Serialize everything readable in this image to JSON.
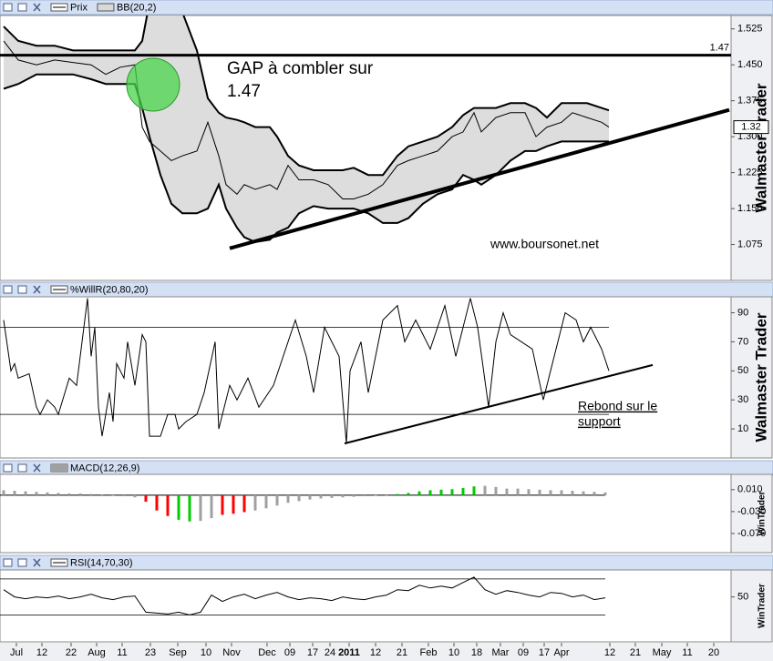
{
  "chart_data": [
    {
      "type": "line",
      "watermark": "Walmaster Trader",
      "xlim": [
        0,
        200.5
      ],
      "ylim": [
        1.0,
        1.553
      ],
      "yticks": [
        1.525,
        {
          "value": 1.45,
          "label": "1.450"
        },
        1.375,
        {
          "value": 1.3,
          "label": "1.300"
        },
        1.225,
        {
          "value": 1.15,
          "label": "1.150"
        },
        1.075
      ],
      "x": [
        1,
        5,
        10,
        15,
        20,
        25,
        29,
        33,
        37,
        39,
        41,
        44,
        47,
        50,
        54,
        57,
        60,
        62,
        65,
        67,
        70,
        74,
        76,
        79,
        82,
        86,
        90,
        94,
        97,
        101,
        105,
        109,
        112,
        116,
        120,
        124,
        127,
        130,
        132,
        136,
        140,
        144,
        147,
        150,
        154,
        157,
        161,
        165,
        167
      ],
      "series": [
        {
          "name": "Prix",
          "color": "#000000",
          "values": [
            1.5,
            1.46,
            1.45,
            1.46,
            1.455,
            1.45,
            1.43,
            1.445,
            1.45,
            1.32,
            1.29,
            1.27,
            1.25,
            1.26,
            1.27,
            1.33,
            1.26,
            1.2,
            1.18,
            1.2,
            1.19,
            1.2,
            1.19,
            1.24,
            1.21,
            1.21,
            1.2,
            1.17,
            1.17,
            1.18,
            1.2,
            1.24,
            1.25,
            1.26,
            1.27,
            1.3,
            1.31,
            1.35,
            1.31,
            1.34,
            1.35,
            1.35,
            1.3,
            1.32,
            1.33,
            1.35,
            1.34,
            1.33,
            1.32
          ]
        },
        {
          "name": "BB(20,2)",
          "color": "#d9d9d9",
          "upper": [
            1.53,
            1.5,
            1.49,
            1.49,
            1.48,
            1.48,
            1.48,
            1.48,
            1.48,
            1.5,
            1.58,
            1.6,
            1.6,
            1.56,
            1.48,
            1.38,
            1.35,
            1.34,
            1.335,
            1.33,
            1.32,
            1.32,
            1.3,
            1.26,
            1.24,
            1.23,
            1.23,
            1.23,
            1.235,
            1.22,
            1.22,
            1.26,
            1.28,
            1.29,
            1.3,
            1.32,
            1.345,
            1.36,
            1.36,
            1.36,
            1.37,
            1.37,
            1.36,
            1.34,
            1.37,
            1.37,
            1.37,
            1.36,
            1.355
          ],
          "lower": [
            1.4,
            1.41,
            1.43,
            1.43,
            1.43,
            1.42,
            1.41,
            1.41,
            1.41,
            1.36,
            1.3,
            1.22,
            1.16,
            1.14,
            1.14,
            1.15,
            1.2,
            1.15,
            1.11,
            1.09,
            1.08,
            1.085,
            1.1,
            1.11,
            1.14,
            1.155,
            1.15,
            1.15,
            1.15,
            1.14,
            1.12,
            1.12,
            1.13,
            1.16,
            1.18,
            1.19,
            1.22,
            1.21,
            1.2,
            1.22,
            1.25,
            1.27,
            1.27,
            1.28,
            1.29,
            1.29,
            1.29,
            1.29,
            1.29
          ]
        }
      ],
      "hline": 1.47,
      "last_price": 1.32,
      "trendline": {
        "x": [
          63,
          200
        ],
        "y": [
          1.067,
          1.356
        ]
      },
      "annotations": [
        "GAP à combler sur",
        "1.47",
        "www.boursonet.net"
      ]
    },
    {
      "type": "line",
      "watermark": "Walmaster Trader",
      "xlim": [
        0,
        200.5
      ],
      "ylim": [
        -10,
        101
      ],
      "yticks": [
        90,
        70,
        50,
        30,
        10
      ],
      "levels": [
        20,
        80
      ],
      "x": [
        1,
        3,
        4,
        5,
        8,
        10,
        11,
        13,
        15,
        16,
        19,
        21,
        24,
        25,
        26,
        27,
        28,
        30,
        31,
        32,
        34,
        35,
        37,
        39,
        40,
        41,
        44,
        46,
        48,
        49,
        51,
        54,
        56,
        59,
        60,
        63,
        65,
        68,
        71,
        75,
        81,
        84,
        86,
        89,
        93,
        95,
        96,
        99,
        101,
        105,
        109,
        111,
        114,
        118,
        122,
        125,
        129,
        131,
        134,
        136,
        138,
        140,
        143,
        146,
        149,
        151,
        155,
        158,
        160,
        162,
        165,
        167
      ],
      "series": [
        {
          "name": "%WillR(20,80,20)",
          "color": "#000000",
          "values": [
            85,
            50,
            55,
            45,
            48,
            25,
            20,
            30,
            25,
            20,
            45,
            40,
            100,
            60,
            80,
            25,
            5,
            35,
            15,
            55,
            45,
            70,
            40,
            75,
            70,
            5,
            5,
            20,
            20,
            10,
            15,
            20,
            35,
            70,
            10,
            40,
            30,
            45,
            25,
            40,
            85,
            60,
            35,
            80,
            60,
            0,
            50,
            70,
            35,
            85,
            95,
            70,
            85,
            65,
            95,
            60,
            100,
            80,
            25,
            70,
            90,
            75,
            70,
            65,
            30,
            50,
            90,
            85,
            70,
            80,
            65,
            50
          ]
        }
      ],
      "trendline": {
        "x": [
          94.5,
          179
        ],
        "y": [
          0,
          54
        ]
      },
      "annotations": [
        "Rebond sur le",
        "support"
      ]
    },
    {
      "type": "bar",
      "watermark": "WinTrader",
      "xlim": [
        0,
        200.5
      ],
      "ylim": [
        -0.105,
        0.038
      ],
      "yticks": [
        {
          "value": 0.01,
          "label": "0.010"
        },
        {
          "value": -0.03,
          "label": "-0.030"
        },
        {
          "value": -0.07,
          "label": "-0.070"
        }
      ],
      "x": [
        1,
        4,
        7,
        10,
        13,
        16,
        19,
        22,
        25,
        28,
        31,
        34,
        37,
        40,
        43,
        46,
        49,
        52,
        55,
        58,
        61,
        64,
        67,
        70,
        73,
        76,
        79,
        82,
        85,
        88,
        91,
        94,
        97,
        100,
        103,
        106,
        109,
        112,
        115,
        118,
        121,
        124,
        127,
        130,
        133,
        136,
        139,
        142,
        145,
        148,
        151,
        154,
        157,
        160,
        163,
        166
      ],
      "series": [
        {
          "name": "MACD(12,26,9)",
          "color": "#a0a0a0",
          "values": [
            0.009,
            0.008,
            0.007,
            0.006,
            0.005,
            0.004,
            0.003,
            0.003,
            0.002,
            0.001,
            0.0,
            -0.002,
            -0.004,
            -0.012,
            -0.028,
            -0.038,
            -0.045,
            -0.048,
            -0.047,
            -0.042,
            -0.036,
            -0.034,
            -0.031,
            -0.028,
            -0.024,
            -0.019,
            -0.014,
            -0.011,
            -0.008,
            -0.006,
            -0.005,
            -0.004,
            -0.003,
            -0.002,
            -0.001,
            0.0,
            0.002,
            0.004,
            0.007,
            0.009,
            0.01,
            0.011,
            0.013,
            0.016,
            0.017,
            0.015,
            0.012,
            0.012,
            0.011,
            0.01,
            0.009,
            0.009,
            0.008,
            0.007,
            0.006,
            0.005
          ],
          "colors": [
            "#a0a0a0",
            "#a0a0a0",
            "#a0a0a0",
            "#a0a0a0",
            "#a0a0a0",
            "#a0a0a0",
            "#a0a0a0",
            "#a0a0a0",
            "#a0a0a0",
            "#a0a0a0",
            "#a0a0a0",
            "#a0a0a0",
            "#a0a0a0",
            "#ff0000",
            "#ff0000",
            "#ff0000",
            "#00cc00",
            "#00cc00",
            "#a0a0a0",
            "#a0a0a0",
            "#ff0000",
            "#ff0000",
            "#ff0000",
            "#a0a0a0",
            "#a0a0a0",
            "#a0a0a0",
            "#a0a0a0",
            "#a0a0a0",
            "#a0a0a0",
            "#a0a0a0",
            "#a0a0a0",
            "#a0a0a0",
            "#a0a0a0",
            "#a0a0a0",
            "#a0a0a0",
            "#a0a0a0",
            "#00cc00",
            "#00cc00",
            "#00cc00",
            "#00cc00",
            "#00cc00",
            "#00cc00",
            "#00cc00",
            "#00cc00",
            "#a0a0a0",
            "#a0a0a0",
            "#a0a0a0",
            "#a0a0a0",
            "#a0a0a0",
            "#a0a0a0",
            "#a0a0a0",
            "#a0a0a0",
            "#a0a0a0",
            "#a0a0a0",
            "#a0a0a0",
            "#a0a0a0"
          ]
        }
      ]
    },
    {
      "type": "line",
      "watermark": "WinTrader",
      "xlim": [
        0,
        200.5
      ],
      "ylim": [
        0,
        80
      ],
      "yticks": [
        50
      ],
      "levels": [
        30,
        70
      ],
      "x": [
        1,
        4,
        7,
        10,
        13,
        16,
        19,
        22,
        25,
        28,
        31,
        34,
        37,
        40,
        43,
        46,
        49,
        52,
        55,
        58,
        61,
        64,
        67,
        70,
        73,
        76,
        79,
        82,
        85,
        88,
        91,
        94,
        97,
        100,
        103,
        106,
        109,
        112,
        115,
        118,
        121,
        124,
        127,
        130,
        133,
        136,
        139,
        142,
        145,
        148,
        151,
        154,
        157,
        160,
        163,
        166
      ],
      "series": [
        {
          "name": "RSI(14,70,30)",
          "color": "#000000",
          "values": [
            58,
            50,
            48,
            50,
            49,
            51,
            48,
            50,
            53,
            49,
            47,
            50,
            51,
            33,
            32,
            31,
            33,
            30,
            33,
            52,
            45,
            50,
            53,
            48,
            52,
            55,
            50,
            47,
            49,
            48,
            46,
            50,
            48,
            47,
            50,
            52,
            58,
            57,
            63,
            60,
            62,
            60,
            66,
            72,
            58,
            53,
            57,
            55,
            52,
            50,
            55,
            54,
            50,
            52,
            47,
            49
          ]
        }
      ],
      "xticks": [
        {
          "value": 4.5,
          "label": "Jul"
        },
        {
          "value": 11.5,
          "label": "12"
        },
        {
          "value": 19.5,
          "label": "22"
        },
        {
          "value": 26.5,
          "label": "Aug"
        },
        {
          "value": 33.5,
          "label": "11"
        },
        {
          "value": 41.25,
          "label": "23"
        },
        {
          "value": 48.75,
          "label": "Sep"
        },
        {
          "value": 56.5,
          "label": "10"
        },
        {
          "value": 63.5,
          "label": "Nov"
        },
        {
          "value": 73.25,
          "label": "Dec"
        },
        {
          "value": 79.5,
          "label": "09"
        },
        {
          "value": 85.75,
          "label": "17"
        },
        {
          "value": 90.5,
          "label": "24"
        },
        {
          "value": 95.75,
          "label": "2011"
        },
        {
          "value": 103,
          "label": "12"
        },
        {
          "value": 110.25,
          "label": "21"
        },
        {
          "value": 117.5,
          "label": "Feb"
        },
        {
          "value": 124.5,
          "label": "10"
        },
        {
          "value": 130.75,
          "label": "18"
        },
        {
          "value": 137.25,
          "label": "Mar"
        },
        {
          "value": 143.5,
          "label": "09"
        },
        {
          "value": 149.25,
          "label": "17"
        },
        {
          "value": 154,
          "label": "Apr"
        },
        {
          "value": 167.25,
          "label": "12"
        },
        {
          "value": 174.25,
          "label": "21"
        },
        {
          "value": 181.5,
          "label": "May"
        },
        {
          "value": 188.5,
          "label": "11"
        },
        {
          "value": 195.75,
          "label": "20"
        }
      ]
    }
  ]
}
